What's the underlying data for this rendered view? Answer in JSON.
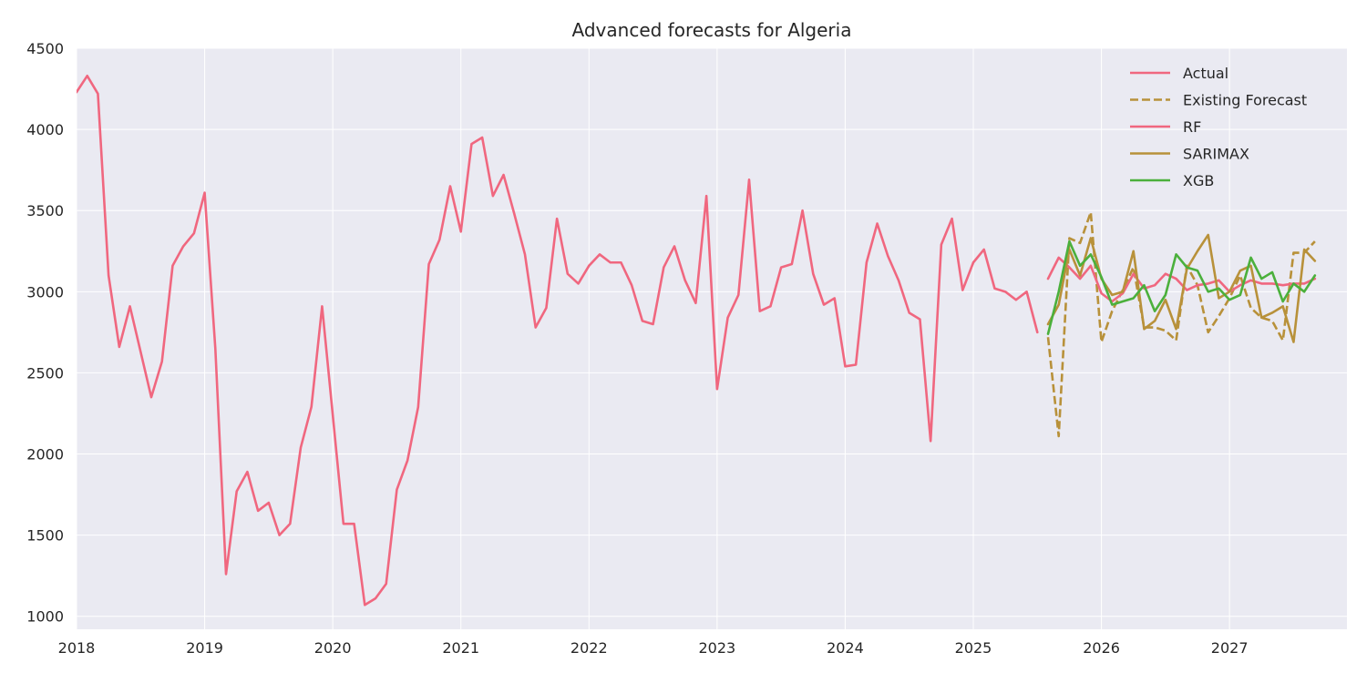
{
  "chart_data": {
    "type": "line",
    "title": "Advanced forecasts for Algeria",
    "xlabel": "",
    "ylabel": "",
    "x_range": [
      "2018-01",
      "2027-12"
    ],
    "ylim": [
      920,
      4500
    ],
    "x_ticks": [
      "2018",
      "2019",
      "2020",
      "2021",
      "2022",
      "2023",
      "2024",
      "2025",
      "2026",
      "2027"
    ],
    "y_ticks": [
      1000,
      1500,
      2000,
      2500,
      3000,
      3500,
      4000,
      4500
    ],
    "grid": true,
    "legend_position": "top-right",
    "series": [
      {
        "name": "Actual",
        "color": "#f0677f",
        "dash": "solid",
        "start": "2018-01",
        "values": [
          4230,
          4330,
          4220,
          3100,
          2660,
          2910,
          2630,
          2350,
          2570,
          3160,
          3280,
          3360,
          3610,
          2650,
          1260,
          1770,
          1890,
          1650,
          1700,
          1500,
          1570,
          2040,
          2290,
          2910,
          2240,
          1570,
          1570,
          1070,
          1110,
          1200,
          1780,
          1960,
          2290,
          3170,
          3320,
          3650,
          3370,
          3910,
          3950,
          3590,
          3720,
          3480,
          3230,
          2780,
          2900,
          3450,
          3110,
          3050,
          3160,
          3230,
          3180,
          3180,
          3040,
          2820,
          2800,
          3150,
          3280,
          3070,
          2930,
          3590,
          2400,
          2840,
          2980,
          3690,
          2880,
          2910,
          3150,
          3170,
          3500,
          3110,
          2920,
          2960,
          2540,
          2550,
          3180,
          3420,
          3220,
          3070,
          2870,
          2830,
          2080,
          3290,
          3450,
          3010,
          3180,
          3260,
          3020,
          3000,
          2950,
          3000,
          2750
        ]
      },
      {
        "name": "Existing Forecast",
        "color": "#b8913a",
        "dash": "dashed",
        "start": "2025-08",
        "values": [
          2720,
          2110,
          3330,
          3300,
          3490,
          2690,
          2880,
          3010,
          3150,
          2780,
          2780,
          2760,
          2700,
          3160,
          3040,
          2750,
          2850,
          2960,
          3100,
          2900,
          2840,
          2820,
          2700,
          3240,
          3240,
          3310
        ]
      },
      {
        "name": "RF",
        "color": "#f0677f",
        "dash": "solid",
        "start": "2025-08",
        "values": [
          3080,
          3210,
          3150,
          3080,
          3160,
          2990,
          2940,
          2990,
          3110,
          3020,
          3040,
          3110,
          3080,
          3010,
          3040,
          3050,
          3070,
          3000,
          3040,
          3070,
          3050,
          3050,
          3040,
          3050,
          3050,
          3080
        ]
      },
      {
        "name": "SARIMAX",
        "color": "#b8913a",
        "dash": "solid",
        "start": "2025-08",
        "values": [
          2800,
          2920,
          3260,
          3100,
          3330,
          3080,
          2980,
          3000,
          3250,
          2770,
          2820,
          2950,
          2770,
          3140,
          3250,
          3350,
          2960,
          3000,
          3130,
          3160,
          2840,
          2870,
          2910,
          2690,
          3260,
          3190
        ]
      },
      {
        "name": "XGB",
        "color": "#4bb03c",
        "dash": "solid",
        "start": "2025-08",
        "values": [
          2740,
          3000,
          3310,
          3160,
          3230,
          3090,
          2920,
          2940,
          2960,
          3040,
          2880,
          2980,
          3230,
          3150,
          3130,
          3000,
          3020,
          2950,
          2980,
          3210,
          3080,
          3120,
          2940,
          3050,
          3000,
          3100
        ]
      }
    ]
  }
}
